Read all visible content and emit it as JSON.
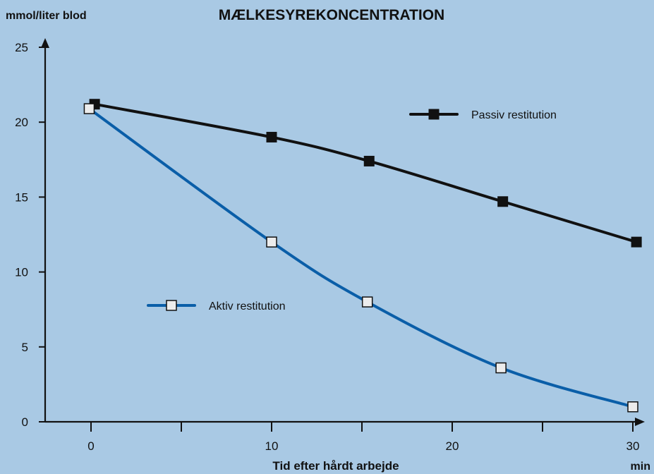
{
  "chart_data": {
    "type": "line",
    "title": "MÆLKESYREKONCENTRATION",
    "ylabel": "mmol/liter blod",
    "xlabel": "Tid efter hårdt arbejde",
    "xunit": "min",
    "xlim": [
      -2.5,
      30.5
    ],
    "ylim": [
      0,
      25
    ],
    "x_ticks": [
      0,
      5,
      10,
      15,
      20,
      25,
      30
    ],
    "x_tick_labels": [
      "0",
      "",
      "10",
      "",
      "20",
      "",
      "30"
    ],
    "y_ticks": [
      0,
      5,
      10,
      15,
      20,
      25
    ],
    "y_tick_labels": [
      "0",
      "5",
      "10",
      "15",
      "20",
      "25"
    ],
    "grid": false,
    "series": [
      {
        "name": "Passiv restitution",
        "color": "#111111",
        "marker": "filled-square",
        "legend_position": "top-right",
        "x": [
          0.2,
          10,
          15.4,
          22.8,
          30.2
        ],
        "y": [
          21.2,
          19.0,
          17.4,
          14.7,
          12.0
        ]
      },
      {
        "name": "Aktiv restitution",
        "color": "#0a5ea8",
        "marker": "open-square",
        "legend_position": "middle-left",
        "x": [
          -0.1,
          10,
          15.3,
          22.7,
          30.0
        ],
        "y": [
          20.9,
          12.0,
          8.0,
          3.6,
          1.0
        ]
      }
    ]
  }
}
